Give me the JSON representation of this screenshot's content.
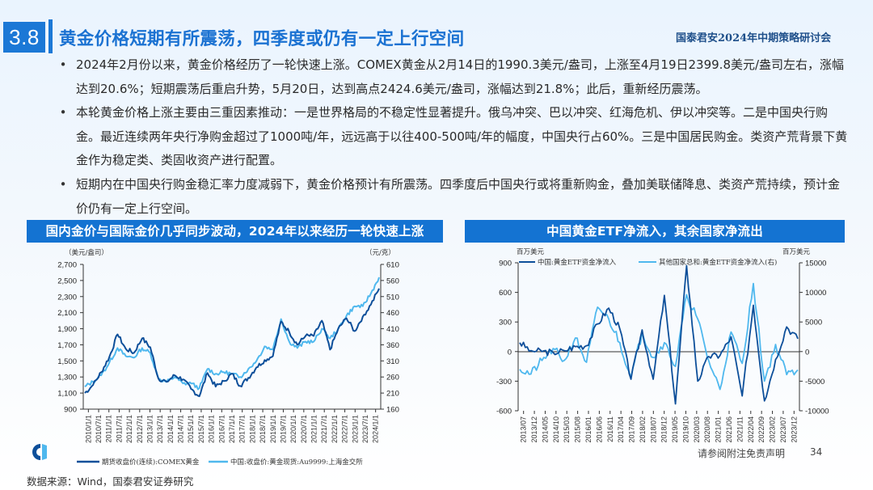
{
  "header": {
    "section_number": "3.8",
    "title": "黄金价格短期有所震荡，四季度或仍有一定上行空间",
    "brand": "国泰君安2024年中期策略研讨会"
  },
  "bullets": [
    {
      "bullet": "•",
      "text": "2024年2月份以来，黄金价格经历了一轮快速上涨。COMEX黄金从2月14日的1990.3美元/盎司，上涨至4月19日2399.8美元/盎司左右，涨幅达到20.6%；短期震荡后重启升势，5月20日，达到高点2424.6美元/盎司，涨幅达到21.8%；此后，重新经历震荡。"
    },
    {
      "bullet": "•",
      "text": "本轮黄金价格上涨主要由三重因素推动：一是世界格局的不稳定性显著提升。俄乌冲突、巴以冲突、红海危机、伊以冲突等。二是中国央行购金。最近连续两年央行净购金超过了1000吨/年，远远高于以往400-500吨/年的幅度，中国央行占60%。三是中国居民购金。类资产荒背景下黄金作为稳定类、类固收资产进行配置。"
    },
    {
      "bullet": "•",
      "text": "短期内在中国央行购金稳汇率力度减弱下，黄金价格预计有所震荡。四季度后中国央行或将重新购金，叠加美联储降息、类资产荒持续，预计金价仍有一定上行空间。"
    }
  ],
  "left_chart": {
    "banner": "国内金价与国际金价几乎同步波动，2024年以来经历一轮快速上涨",
    "left_unit": "（美元/盎司）",
    "right_unit": "（元/克）",
    "left_ticks": [
      "2,700",
      "2,500",
      "2,300",
      "2,100",
      "1,900",
      "1,700",
      "1,500",
      "1,300",
      "1,100",
      "900"
    ],
    "right_ticks": [
      "610",
      "560",
      "510",
      "460",
      "410",
      "360",
      "310",
      "260",
      "210",
      "160"
    ],
    "x_ticks": [
      "2010/1/1",
      "2010/7/1",
      "2011/1/1",
      "2011/7/1",
      "2012/1/1",
      "2012/7/1",
      "2013/1/1",
      "2013/7/1",
      "2014/1/1",
      "2014/7/1",
      "2015/1/1",
      "2015/7/1",
      "2016/1/1",
      "2016/7/1",
      "2017/1/1",
      "2017/7/1",
      "2018/1/1",
      "2018/7/1",
      "2019/1/1",
      "2019/7/1",
      "2020/1/1",
      "2020/7/1",
      "2021/1/1",
      "2021/7/1",
      "2022/1/1",
      "2022/7/1",
      "2023/1/1",
      "2023/7/1",
      "2024/1/1"
    ],
    "legend": [
      {
        "label": "期货收盘价(连续):COMEX黄金",
        "color": "#0d4f9a"
      },
      {
        "label": "中国:收盘价:黄金现货:Au9999:上海金交所",
        "color": "#4fb8ee"
      }
    ]
  },
  "right_chart": {
    "banner": "中国黄金ETF净流入，其余国家净流出",
    "left_unit": "百万美元",
    "right_unit": "百万美元",
    "left_ticks": [
      "900",
      "600",
      "300",
      "0",
      "-300",
      "-600"
    ],
    "right_ticks": [
      "15000",
      "10000",
      "5000",
      "0",
      "-5000",
      "-10000"
    ],
    "x_ticks": [
      "2013/07",
      "2013/12",
      "2014/05",
      "2014/10",
      "2015/03",
      "2015/08",
      "2016/01",
      "2016/06",
      "2016/11",
      "2017/04",
      "2017/09",
      "2018/02",
      "2018/07",
      "2018/12",
      "2019/05",
      "2019/10",
      "2020/03",
      "2020/08",
      "2021/01",
      "2021/06",
      "2021/11",
      "2022/04",
      "2022/09",
      "2023/02",
      "2023/07",
      "2023/12"
    ],
    "legend": [
      {
        "label": "中国:黄金ETF资金净流入",
        "color": "#0d4f9a"
      },
      {
        "label": "其他国家总和:黄金ETF资金净流入(右)",
        "color": "#4fb8ee"
      }
    ]
  },
  "chart_data": [
    {
      "type": "line",
      "title": "国内金价与国际金价几乎同步波动，2024年以来经历一轮快速上涨",
      "xlabel": "",
      "ylabel": "（美元/盎司）",
      "y2label": "（元/克）",
      "ylim": [
        900,
        2700
      ],
      "y2lim": [
        160,
        610
      ],
      "x": [
        "2010/1",
        "2010/7",
        "2011/1",
        "2011/7",
        "2011/9",
        "2012/1",
        "2012/7",
        "2012/10",
        "2013/1",
        "2013/7",
        "2014/1",
        "2014/7",
        "2015/1",
        "2015/7",
        "2015/12",
        "2016/7",
        "2017/1",
        "2017/7",
        "2018/1",
        "2018/8",
        "2019/1",
        "2019/7",
        "2019/9",
        "2020/1",
        "2020/8",
        "2021/1",
        "2021/3",
        "2021/7",
        "2022/1",
        "2022/3",
        "2022/9",
        "2023/1",
        "2023/5",
        "2023/10",
        "2024/1",
        "2024/3",
        "2024/5"
      ],
      "series": [
        {
          "name": "期货收盘价(连续):COMEX黄金",
          "axis": "left",
          "values": [
            1100,
            1200,
            1360,
            1550,
            1830,
            1650,
            1600,
            1780,
            1670,
            1280,
            1240,
            1320,
            1270,
            1150,
            1060,
            1350,
            1180,
            1250,
            1340,
            1190,
            1290,
            1420,
            1510,
            1560,
            1990,
            1860,
            1700,
            1810,
            1810,
            2000,
            1640,
            1900,
            2030,
            1870,
            2050,
            2200,
            2400
          ]
        },
        {
          "name": "中国:收盘价:黄金现货:Au9999:上海金交所",
          "axis": "right",
          "values": [
            230,
            245,
            265,
            305,
            350,
            325,
            320,
            350,
            335,
            255,
            245,
            260,
            240,
            240,
            225,
            285,
            270,
            275,
            270,
            260,
            285,
            310,
            355,
            345,
            440,
            370,
            350,
            370,
            370,
            410,
            380,
            410,
            450,
            480,
            480,
            520,
            570
          ]
        }
      ],
      "legend_position": "bottom",
      "grid": false
    },
    {
      "type": "line",
      "title": "中国黄金ETF净流入，其余国家净流出",
      "ylabel": "百万美元",
      "y2label": "百万美元",
      "ylim": [
        -600,
        900
      ],
      "y2lim": [
        -10000,
        15000
      ],
      "x": [
        "2013/07",
        "2013/12",
        "2014/05",
        "2014/10",
        "2015/03",
        "2015/08",
        "2016/01",
        "2016/06",
        "2016/11",
        "2017/04",
        "2017/09",
        "2018/02",
        "2018/07",
        "2018/12",
        "2019/05",
        "2019/10",
        "2020/03",
        "2020/08",
        "2021/01",
        "2021/06",
        "2021/11",
        "2022/04",
        "2022/09",
        "2023/02",
        "2023/07",
        "2023/12"
      ],
      "series": [
        {
          "name": "中国:黄金ETF资金净流入",
          "axis": "left",
          "values": [
            90,
            10,
            0,
            -10,
            10,
            50,
            60,
            280,
            440,
            230,
            -280,
            220,
            -280,
            570,
            -530,
            870,
            -300,
            -50,
            -40,
            150,
            -450,
            470,
            -500,
            -80,
            250,
            130
          ]
        },
        {
          "name": "其他国家总和:黄金ETF资金净流入(右)",
          "axis": "right",
          "values": [
            -3000,
            -3800,
            -1500,
            500,
            -1500,
            2300,
            -1800,
            7500,
            5500,
            1500,
            -4400,
            3200,
            -1000,
            1500,
            -2500,
            9600,
            5500,
            -1600,
            -6400,
            3300,
            -2000,
            11500,
            -5000,
            1200,
            -3900,
            -3100
          ]
        }
      ],
      "legend_position": "top",
      "grid": false
    }
  ],
  "footer": {
    "source": "数据来源：Wind，国泰君安证券研究",
    "disclaimer": "请参阅附注免责声明",
    "page_number": "34",
    "logo": "guotai-junan-logo-icon"
  },
  "colors": {
    "accent": "#1b78d6",
    "title": "#1b72d2",
    "brand": "#1e4f8a",
    "series_dark": "#0d4f9a",
    "series_light": "#4fb8ee"
  }
}
